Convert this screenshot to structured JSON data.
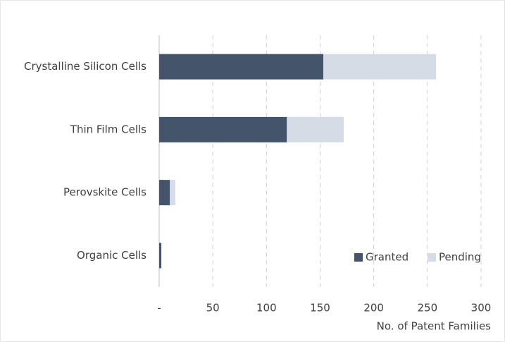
{
  "chart_data": {
    "type": "stacked_barh",
    "categories": [
      "Crystalline Silicon Cells",
      "Thin Film Cells",
      "Perovskite Cells",
      "Organic Cells"
    ],
    "series": [
      {
        "name": "Granted",
        "color": "#44546a",
        "values": [
          153,
          119,
          10,
          2
        ]
      },
      {
        "name": "Pending",
        "color": "#d6dce5",
        "values": [
          105,
          53,
          5,
          0
        ]
      }
    ],
    "xlabel": "No. of Patent Families",
    "xlim": [
      0,
      300
    ],
    "xticks": [
      {
        "value": 0,
        "label": "-"
      },
      50,
      100,
      150,
      200,
      250,
      300
    ],
    "grid": true,
    "legend": "lower right"
  }
}
